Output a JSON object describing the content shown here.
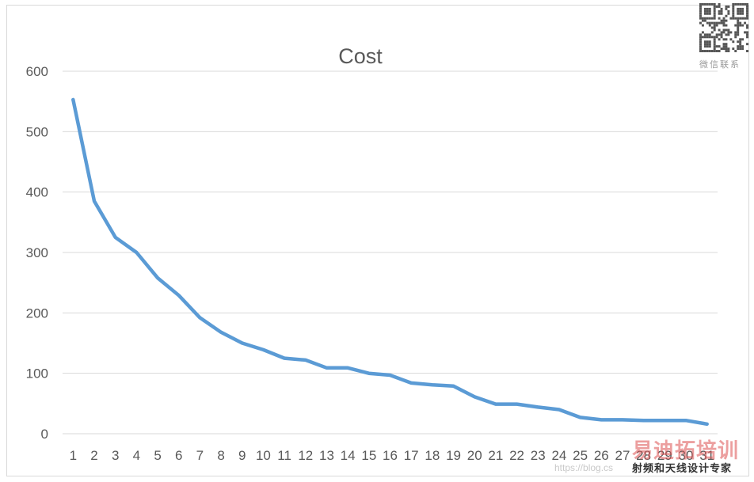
{
  "chart_data": {
    "type": "line",
    "title": "Cost",
    "xlabel": "",
    "ylabel": "",
    "categories": [
      "1",
      "2",
      "3",
      "4",
      "5",
      "6",
      "7",
      "8",
      "9",
      "10",
      "11",
      "12",
      "13",
      "14",
      "15",
      "16",
      "17",
      "18",
      "19",
      "20",
      "21",
      "22",
      "23",
      "24",
      "25",
      "26",
      "27",
      "28",
      "29",
      "30",
      "31"
    ],
    "series": [
      {
        "name": "",
        "values": [
          553,
          385,
          325,
          300,
          258,
          229,
          192,
          168,
          150,
          139,
          125,
          122,
          109,
          109,
          100,
          97,
          84,
          81,
          79,
          61,
          49,
          49,
          44,
          40,
          27,
          23,
          23,
          22,
          22,
          22,
          16
        ]
      }
    ],
    "ylim": [
      0,
      600
    ],
    "yticks": [
      "0",
      "100",
      "200",
      "300",
      "400",
      "500",
      "600"
    ],
    "grid": true,
    "legend": "none",
    "colors": {
      "line": "#5b9bd5",
      "grid": "#d9d9d9",
      "text": "#595959"
    }
  },
  "watermark": {
    "qr_caption": "微信联系",
    "logo_text": "易迪拓培训",
    "logo_subtitle": "射频和天线设计专家",
    "url_text": "https://blog.cs"
  }
}
